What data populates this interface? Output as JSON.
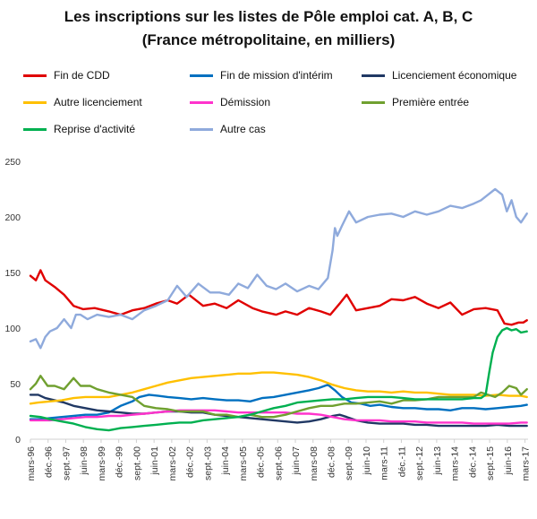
{
  "title_line1": "Les inscriptions  sur les listes de Pôle emploi cat. A, B, C",
  "title_line2": "(France métropolitaine,  en milliers)",
  "chart_data": {
    "type": "line",
    "title": "Les inscriptions sur les listes de Pôle emploi cat. A, B, C (France métropolitaine, en milliers)",
    "xlabel": "",
    "ylabel": "",
    "ylim": [
      0,
      250
    ],
    "yticks": [
      0,
      50,
      100,
      150,
      200,
      250
    ],
    "grid": false,
    "legend_position": "top",
    "x_tick_labels": [
      "mars-96",
      "déc.-96",
      "sept.-97",
      "juin-98",
      "mars-99",
      "déc.-99",
      "sept.-00",
      "juin-01",
      "mars-02",
      "déc.-02",
      "sept.-03",
      "juin-04",
      "mars-05",
      "déc.-05",
      "sept.-06",
      "juin-07",
      "mars-08",
      "déc.-08",
      "sept.-09",
      "juin-10",
      "mars-11",
      "déc.-11",
      "sept.-12",
      "juin-13",
      "mars-14",
      "déc.-14",
      "sept.-15",
      "juin-16",
      "mars-17"
    ],
    "series": [
      {
        "name": "Fin de CDD",
        "color": "#e00000",
        "x": [
          1996.17,
          1996.4,
          1996.6,
          1996.8,
          1997.2,
          1997.6,
          1998.0,
          1998.4,
          1998.9,
          1999.5,
          2000.0,
          2000.5,
          2001.0,
          2001.5,
          2002.0,
          2002.4,
          2002.9,
          2003.5,
          2004.0,
          2004.5,
          2005.0,
          2005.6,
          2006.0,
          2006.6,
          2007.0,
          2007.5,
          2008.0,
          2008.5,
          2008.9,
          2009.3,
          2009.6,
          2010.0,
          2010.5,
          2011.0,
          2011.5,
          2012.0,
          2012.5,
          2013.0,
          2013.5,
          2014.0,
          2014.5,
          2015.0,
          2015.5,
          2016.0,
          2016.3,
          2016.6,
          2016.9,
          2017.1,
          2017.25
        ],
        "y": [
          147,
          143,
          152,
          143,
          137,
          130,
          120,
          117,
          118,
          115,
          112,
          116,
          118,
          122,
          125,
          122,
          130,
          120,
          122,
          118,
          125,
          118,
          115,
          112,
          115,
          112,
          118,
          115,
          112,
          122,
          130,
          116,
          118,
          120,
          126,
          125,
          128,
          122,
          118,
          123,
          112,
          117,
          118,
          116,
          104,
          103,
          105,
          105,
          107
        ]
      },
      {
        "name": "Fin de mission d'intérim",
        "color": "#0070c0",
        "x": [
          1996.17,
          1996.6,
          1997.0,
          1997.5,
          1998.0,
          1998.5,
          1999.0,
          1999.5,
          2000.0,
          2000.5,
          2000.8,
          2001.2,
          2001.6,
          2002.0,
          2002.5,
          2003.0,
          2003.5,
          2004.0,
          2004.5,
          2005.0,
          2005.5,
          2006.0,
          2006.5,
          2007.0,
          2007.5,
          2008.0,
          2008.4,
          2008.8,
          2009.1,
          2009.4,
          2009.8,
          2010.2,
          2010.6,
          2011.0,
          2011.5,
          2012.0,
          2012.5,
          2013.0,
          2013.5,
          2014.0,
          2014.5,
          2015.0,
          2015.5,
          2016.0,
          2016.5,
          2017.0,
          2017.25
        ],
        "y": [
          18,
          18,
          19,
          20,
          21,
          22,
          22,
          24,
          30,
          34,
          38,
          40,
          39,
          38,
          37,
          36,
          37,
          36,
          35,
          35,
          34,
          37,
          38,
          40,
          42,
          44,
          46,
          49,
          44,
          38,
          33,
          32,
          30,
          31,
          29,
          28,
          28,
          27,
          27,
          26,
          28,
          28,
          27,
          28,
          29,
          30,
          31
        ]
      },
      {
        "name": "Licenciement économique",
        "color": "#203864",
        "x": [
          1996.17,
          1996.5,
          1996.8,
          1997.2,
          1997.6,
          1998.0,
          1998.5,
          1999.0,
          1999.5,
          2000.0,
          2000.5,
          2001.0,
          2001.5,
          2002.0,
          2002.5,
          2003.0,
          2003.5,
          2004.0,
          2004.5,
          2005.0,
          2005.5,
          2006.0,
          2006.5,
          2007.0,
          2007.5,
          2008.0,
          2008.5,
          2009.0,
          2009.3,
          2009.6,
          2010.0,
          2010.5,
          2011.0,
          2011.5,
          2012.0,
          2012.5,
          2013.0,
          2013.5,
          2014.0,
          2014.5,
          2015.0,
          2015.5,
          2016.0,
          2016.5,
          2017.0,
          2017.25
        ],
        "y": [
          40,
          40,
          37,
          35,
          33,
          30,
          28,
          26,
          25,
          24,
          23,
          23,
          24,
          25,
          25,
          24,
          24,
          22,
          21,
          20,
          19,
          18,
          17,
          16,
          15,
          16,
          18,
          21,
          22,
          20,
          17,
          15,
          14,
          14,
          14,
          13,
          13,
          12,
          12,
          12,
          12,
          12,
          13,
          12,
          12,
          12
        ]
      },
      {
        "name": "Autre licenciement",
        "color": "#ffc000",
        "x": [
          1996.17,
          1996.5,
          1997.0,
          1997.5,
          1998.0,
          1998.5,
          1999.0,
          1999.5,
          2000.0,
          2000.5,
          2001.0,
          2001.5,
          2002.0,
          2002.5,
          2003.0,
          2003.5,
          2004.0,
          2004.5,
          2005.0,
          2005.5,
          2006.0,
          2006.5,
          2007.0,
          2007.5,
          2008.0,
          2008.5,
          2009.0,
          2009.5,
          2010.0,
          2010.5,
          2011.0,
          2011.5,
          2012.0,
          2012.5,
          2013.0,
          2013.5,
          2014.0,
          2014.5,
          2015.0,
          2015.5,
          2016.0,
          2016.5,
          2017.0,
          2017.25
        ],
        "y": [
          32,
          33,
          34,
          35,
          37,
          38,
          38,
          38,
          40,
          42,
          45,
          48,
          51,
          53,
          55,
          56,
          57,
          58,
          59,
          59,
          60,
          60,
          59,
          58,
          56,
          53,
          49,
          46,
          44,
          43,
          43,
          42,
          43,
          42,
          42,
          41,
          40,
          40,
          40,
          39,
          40,
          39,
          39,
          38
        ]
      },
      {
        "name": "Démission",
        "color": "#ff33cc",
        "x": [
          1996.17,
          1996.6,
          1997.0,
          1997.5,
          1998.0,
          1998.5,
          1999.0,
          1999.5,
          2000.0,
          2000.5,
          2001.0,
          2001.5,
          2002.0,
          2002.5,
          2003.0,
          2003.5,
          2004.0,
          2004.5,
          2005.0,
          2005.5,
          2006.0,
          2006.5,
          2007.0,
          2007.5,
          2008.0,
          2008.5,
          2009.0,
          2009.5,
          2010.0,
          2010.5,
          2011.0,
          2011.5,
          2012.0,
          2012.5,
          2013.0,
          2013.5,
          2014.0,
          2014.5,
          2015.0,
          2015.5,
          2016.0,
          2016.5,
          2017.0,
          2017.25
        ],
        "y": [
          17,
          17,
          17,
          18,
          19,
          20,
          20,
          21,
          21,
          22,
          23,
          24,
          25,
          26,
          26,
          26,
          26,
          25,
          24,
          24,
          24,
          24,
          24,
          23,
          23,
          22,
          20,
          18,
          17,
          17,
          17,
          16,
          16,
          16,
          15,
          15,
          15,
          15,
          14,
          14,
          14,
          14,
          15,
          15
        ]
      },
      {
        "name": "Première entrée",
        "color": "#70a030",
        "x": [
          1996.17,
          1996.4,
          1996.6,
          1996.9,
          1997.2,
          1997.6,
          1998.0,
          1998.3,
          1998.7,
          1999.0,
          1999.5,
          2000.0,
          2000.5,
          2001.0,
          2001.5,
          2002.0,
          2002.5,
          2003.0,
          2003.5,
          2004.0,
          2004.5,
          2005.0,
          2005.5,
          2006.0,
          2006.5,
          2007.0,
          2007.5,
          2008.0,
          2008.5,
          2009.0,
          2009.5,
          2010.0,
          2010.5,
          2011.0,
          2011.5,
          2012.0,
          2012.5,
          2013.0,
          2013.5,
          2014.0,
          2014.5,
          2015.0,
          2015.3,
          2015.6,
          2015.9,
          2016.2,
          2016.5,
          2016.8,
          2017.0,
          2017.25
        ],
        "y": [
          45,
          50,
          57,
          48,
          48,
          45,
          55,
          48,
          48,
          45,
          42,
          40,
          38,
          30,
          28,
          27,
          25,
          25,
          25,
          22,
          22,
          20,
          22,
          20,
          20,
          22,
          25,
          28,
          30,
          30,
          32,
          32,
          33,
          34,
          32,
          35,
          35,
          36,
          38,
          38,
          38,
          38,
          42,
          40,
          38,
          42,
          48,
          46,
          40,
          45
        ]
      },
      {
        "name": "Reprise d'activité",
        "color": "#00b050",
        "x": [
          1996.17,
          1996.6,
          1997.0,
          1997.5,
          1998.0,
          1998.5,
          1999.0,
          1999.5,
          2000.0,
          2000.5,
          2001.0,
          2001.5,
          2002.0,
          2002.5,
          2003.0,
          2003.5,
          2004.0,
          2004.5,
          2005.0,
          2005.5,
          2006.0,
          2006.5,
          2007.0,
          2007.5,
          2008.0,
          2008.5,
          2009.0,
          2009.5,
          2010.0,
          2010.5,
          2011.0,
          2011.5,
          2012.0,
          2012.5,
          2013.0,
          2013.5,
          2014.0,
          2014.5,
          2015.0,
          2015.3,
          2015.5,
          2015.65,
          2015.8,
          2016.0,
          2016.2,
          2016.4,
          2016.6,
          2016.8,
          2017.0,
          2017.25
        ],
        "y": [
          21,
          20,
          18,
          16,
          14,
          11,
          9,
          8,
          10,
          11,
          12,
          13,
          14,
          15,
          15,
          17,
          18,
          19,
          20,
          22,
          25,
          28,
          30,
          33,
          34,
          35,
          36,
          36,
          37,
          38,
          38,
          38,
          37,
          36,
          36,
          36,
          36,
          36,
          37,
          37,
          40,
          60,
          78,
          92,
          98,
          100,
          98,
          99,
          96,
          97
        ]
      },
      {
        "name": "Autre cas",
        "color": "#8faadc",
        "x": [
          1996.17,
          1996.4,
          1996.6,
          1996.8,
          1997.0,
          1997.3,
          1997.6,
          1997.9,
          1998.1,
          1998.3,
          1998.6,
          1999.0,
          1999.5,
          2000.0,
          2000.5,
          2001.0,
          2001.5,
          2002.0,
          2002.4,
          2002.8,
          2003.3,
          2003.8,
          2004.2,
          2004.6,
          2005.0,
          2005.4,
          2005.8,
          2006.2,
          2006.6,
          2007.0,
          2007.5,
          2008.0,
          2008.4,
          2008.8,
          2009.0,
          2009.1,
          2009.2,
          2009.4,
          2009.7,
          2010.0,
          2010.5,
          2011.0,
          2011.5,
          2012.0,
          2012.5,
          2013.0,
          2013.5,
          2014.0,
          2014.5,
          2015.0,
          2015.3,
          2015.6,
          2015.9,
          2016.2,
          2016.4,
          2016.6,
          2016.8,
          2017.0,
          2017.25
        ],
        "y": [
          88,
          90,
          82,
          92,
          97,
          100,
          108,
          100,
          112,
          112,
          108,
          112,
          110,
          112,
          108,
          116,
          120,
          125,
          138,
          128,
          140,
          132,
          132,
          130,
          140,
          136,
          148,
          138,
          135,
          140,
          133,
          138,
          135,
          145,
          170,
          190,
          183,
          192,
          205,
          195,
          200,
          202,
          203,
          200,
          205,
          202,
          205,
          210,
          208,
          212,
          215,
          220,
          225,
          220,
          205,
          215,
          200,
          195,
          203
        ]
      }
    ]
  }
}
